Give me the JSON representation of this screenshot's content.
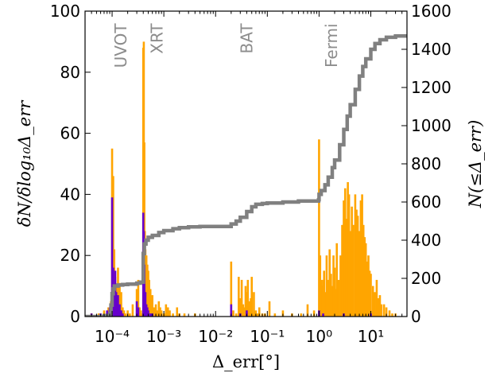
{
  "chart_data": {
    "type": "bar",
    "xscale": "log",
    "xlim": [
      3e-05,
      50
    ],
    "ylim_left": [
      0,
      100
    ],
    "ylim_right": [
      0,
      1600
    ],
    "xlabel": "Δ_err[°]",
    "ylabel_left": "δN/δlog₁₀Δ_err",
    "ylabel_right": "N(≤Δ_err)",
    "x_ticks": [
      {
        "value": 0.0001,
        "label": "10⁻⁴"
      },
      {
        "value": 0.001,
        "label": "10⁻³"
      },
      {
        "value": 0.01,
        "label": "10⁻²"
      },
      {
        "value": 0.1,
        "label": "10⁻¹"
      },
      {
        "value": 1,
        "label": "10⁰"
      },
      {
        "value": 10,
        "label": "10¹"
      }
    ],
    "y_ticks_left": [
      "0",
      "20",
      "40",
      "60",
      "80",
      "100"
    ],
    "y_ticks_right": [
      "0",
      "200",
      "400",
      "600",
      "800",
      "1000",
      "1200",
      "1400",
      "1600"
    ],
    "annotations": [
      {
        "text": "UVOT",
        "x": 0.00011,
        "y": 96
      },
      {
        "text": "XRT",
        "x": 0.00055,
        "y": 96
      },
      {
        "text": "BAT",
        "x": 0.03,
        "y": 96
      },
      {
        "text": "Fermi",
        "x": 1.3,
        "y": 96
      }
    ],
    "colors": {
      "orange": "#ffa500",
      "purple": "#6600cc",
      "cumulative": "#808080"
    },
    "series": [
      {
        "style": "orange-bars",
        "points": [
          [
            4e-05,
            1
          ],
          [
            5.5e-05,
            1
          ],
          [
            7e-05,
            2
          ],
          [
            8.5e-05,
            3
          ],
          [
            9.5e-05,
            5
          ],
          [
            0.0001,
            55
          ],
          [
            0.000105,
            46
          ],
          [
            0.00011,
            22
          ],
          [
            0.000115,
            13
          ],
          [
            0.00012,
            10
          ],
          [
            0.000125,
            7
          ],
          [
            0.00013,
            16
          ],
          [
            0.00014,
            11
          ],
          [
            0.00015,
            8
          ],
          [
            0.00016,
            3
          ],
          [
            0.00017,
            2
          ],
          [
            0.00018,
            1
          ],
          [
            0.0002,
            2
          ],
          [
            0.00022,
            1
          ],
          [
            0.00025,
            4
          ],
          [
            0.0003,
            9
          ],
          [
            0.00032,
            12
          ],
          [
            0.00034,
            3
          ],
          [
            0.00036,
            2
          ],
          [
            0.00038,
            1
          ],
          [
            0.0004,
            88
          ],
          [
            0.00041,
            90
          ],
          [
            0.00042,
            57
          ],
          [
            0.00043,
            28
          ],
          [
            0.00044,
            22
          ],
          [
            0.00046,
            20
          ],
          [
            0.00048,
            17
          ],
          [
            0.0005,
            15
          ],
          [
            0.00052,
            12
          ],
          [
            0.00055,
            9
          ],
          [
            0.0006,
            7
          ],
          [
            0.00065,
            3
          ],
          [
            0.0007,
            4
          ],
          [
            0.00075,
            2
          ],
          [
            0.0008,
            5
          ],
          [
            0.00085,
            3
          ],
          [
            0.0009,
            2
          ],
          [
            0.001,
            1
          ],
          [
            0.0011,
            4
          ],
          [
            0.0012,
            3
          ],
          [
            0.0013,
            2
          ],
          [
            0.0015,
            1
          ],
          [
            0.0018,
            3
          ],
          [
            0.002,
            1
          ],
          [
            0.0025,
            1
          ],
          [
            0.004,
            1
          ],
          [
            0.02,
            18
          ],
          [
            0.022,
            2
          ],
          [
            0.025,
            1
          ],
          [
            0.028,
            13
          ],
          [
            0.03,
            6
          ],
          [
            0.032,
            12
          ],
          [
            0.034,
            4
          ],
          [
            0.036,
            3
          ],
          [
            0.038,
            10
          ],
          [
            0.04,
            8
          ],
          [
            0.042,
            12
          ],
          [
            0.045,
            5
          ],
          [
            0.048,
            6
          ],
          [
            0.05,
            13
          ],
          [
            0.055,
            8
          ],
          [
            0.06,
            2
          ],
          [
            0.065,
            1
          ],
          [
            0.07,
            3
          ],
          [
            0.08,
            1
          ],
          [
            0.09,
            1
          ],
          [
            0.11,
            5
          ],
          [
            0.14,
            1
          ],
          [
            0.2,
            2
          ],
          [
            0.3,
            1
          ],
          [
            0.45,
            1
          ],
          [
            0.6,
            4
          ],
          [
            0.8,
            2
          ],
          [
            1.0,
            58
          ],
          [
            1.05,
            20
          ],
          [
            1.1,
            12
          ],
          [
            1.15,
            10
          ],
          [
            1.2,
            12
          ],
          [
            1.25,
            15
          ],
          [
            1.3,
            8
          ],
          [
            1.4,
            20
          ],
          [
            1.5,
            12
          ],
          [
            1.6,
            22
          ],
          [
            1.7,
            14
          ],
          [
            1.8,
            10
          ],
          [
            1.9,
            20
          ],
          [
            2.0,
            16
          ],
          [
            2.1,
            9
          ],
          [
            2.2,
            24
          ],
          [
            2.4,
            12
          ],
          [
            2.6,
            20
          ],
          [
            2.8,
            30
          ],
          [
            3.0,
            38
          ],
          [
            3.2,
            42
          ],
          [
            3.4,
            32
          ],
          [
            3.6,
            44
          ],
          [
            3.8,
            40
          ],
          [
            4.0,
            28
          ],
          [
            4.3,
            36
          ],
          [
            4.6,
            30
          ],
          [
            5.0,
            40
          ],
          [
            5.3,
            35
          ],
          [
            5.6,
            33
          ],
          [
            6.0,
            28
          ],
          [
            6.4,
            38
          ],
          [
            6.8,
            40
          ],
          [
            7.2,
            30
          ],
          [
            7.6,
            26
          ],
          [
            8.0,
            24
          ],
          [
            8.5,
            18
          ],
          [
            9.0,
            20
          ],
          [
            9.5,
            15
          ],
          [
            10.0,
            14
          ],
          [
            11.0,
            10
          ],
          [
            12.0,
            8
          ],
          [
            13.0,
            12
          ],
          [
            14.0,
            6
          ],
          [
            15.0,
            7
          ],
          [
            16.0,
            4
          ],
          [
            18.0,
            4
          ],
          [
            20.0,
            3
          ],
          [
            23.0,
            2
          ],
          [
            26.0,
            1
          ],
          [
            30.0,
            1
          ]
        ]
      },
      {
        "style": "purple-bars",
        "points": [
          [
            4e-05,
            1
          ],
          [
            6e-05,
            1
          ],
          [
            8e-05,
            2
          ],
          [
            9e-05,
            3
          ],
          [
            0.0001,
            39
          ],
          [
            0.000105,
            16
          ],
          [
            0.00011,
            10
          ],
          [
            0.000115,
            15
          ],
          [
            0.00012,
            8
          ],
          [
            0.00013,
            7
          ],
          [
            0.00014,
            4
          ],
          [
            0.00015,
            2
          ],
          [
            0.00016,
            1
          ],
          [
            0.0003,
            5
          ],
          [
            0.00032,
            3
          ],
          [
            0.0004,
            34
          ],
          [
            0.00041,
            28
          ],
          [
            0.00042,
            17
          ],
          [
            0.00043,
            6
          ],
          [
            0.00044,
            8
          ],
          [
            0.00046,
            4
          ],
          [
            0.00048,
            3
          ],
          [
            0.0005,
            2
          ],
          [
            0.00055,
            1
          ],
          [
            0.0006,
            1
          ],
          [
            0.02,
            4
          ],
          [
            0.03,
            1
          ],
          [
            0.04,
            2
          ],
          [
            1.0,
            2
          ],
          [
            1.2,
            1
          ],
          [
            3.0,
            1
          ],
          [
            10.0,
            1
          ]
        ]
      },
      {
        "style": "cumulative-step",
        "points": [
          [
            3e-05,
            0
          ],
          [
            7e-05,
            5
          ],
          [
            9e-05,
            15
          ],
          [
            9.5e-05,
            60
          ],
          [
            0.0001,
            120
          ],
          [
            0.000105,
            145
          ],
          [
            0.00011,
            160
          ],
          [
            0.00013,
            165
          ],
          [
            0.00016,
            168
          ],
          [
            0.0002,
            170
          ],
          [
            0.0003,
            175
          ],
          [
            0.00035,
            180
          ],
          [
            0.0004,
            330
          ],
          [
            0.00042,
            380
          ],
          [
            0.00045,
            400
          ],
          [
            0.0005,
            415
          ],
          [
            0.0006,
            425
          ],
          [
            0.0008,
            440
          ],
          [
            0.001,
            450
          ],
          [
            0.0015,
            460
          ],
          [
            0.002,
            466
          ],
          [
            0.003,
            470
          ],
          [
            0.005,
            472
          ],
          [
            0.019,
            472
          ],
          [
            0.02,
            485
          ],
          [
            0.025,
            500
          ],
          [
            0.03,
            520
          ],
          [
            0.04,
            550
          ],
          [
            0.05,
            575
          ],
          [
            0.06,
            588
          ],
          [
            0.08,
            592
          ],
          [
            0.1,
            595
          ],
          [
            0.2,
            600
          ],
          [
            0.4,
            605
          ],
          [
            0.98,
            612
          ],
          [
            1.0,
            640
          ],
          [
            1.1,
            660
          ],
          [
            1.3,
            690
          ],
          [
            1.5,
            730
          ],
          [
            1.8,
            780
          ],
          [
            2.0,
            820
          ],
          [
            2.5,
            900
          ],
          [
            3.0,
            980
          ],
          [
            3.5,
            1050
          ],
          [
            4.0,
            1110
          ],
          [
            5.0,
            1190
          ],
          [
            6.0,
            1260
          ],
          [
            7.0,
            1310
          ],
          [
            8.0,
            1350
          ],
          [
            10.0,
            1400
          ],
          [
            12.0,
            1430
          ],
          [
            15.0,
            1450
          ],
          [
            20.0,
            1463
          ],
          [
            30.0,
            1470
          ],
          [
            50.0,
            1472
          ]
        ]
      }
    ]
  }
}
